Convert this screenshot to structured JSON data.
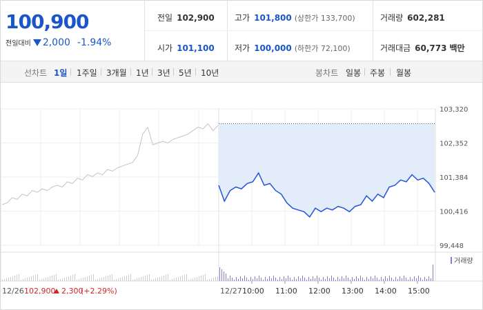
{
  "quote": {
    "price": "100,900",
    "change_label": "전일대비",
    "change_value": "2,000",
    "change_pct": "-1.94%"
  },
  "stats": {
    "prev_close": {
      "label": "전일",
      "value": "102,900"
    },
    "high": {
      "label": "고가",
      "value": "101,800",
      "limit_label": "(상한가 133,700)"
    },
    "volume": {
      "label": "거래량",
      "value": "602,281"
    },
    "open": {
      "label": "시가",
      "value": "101,100"
    },
    "low": {
      "label": "저가",
      "value": "100,000",
      "limit_label": "(하한가 72,100)"
    },
    "amount": {
      "label": "거래대금",
      "value": "60,773",
      "unit": "백만"
    }
  },
  "tabs": {
    "line_label": "선차트",
    "line_periods": [
      "1일",
      "1주일",
      "3개월",
      "1년",
      "3년",
      "5년",
      "10년"
    ],
    "selected": "1일",
    "candle_label": "봉차트",
    "candle_periods": [
      "일봉",
      "주봉",
      "월봉"
    ]
  },
  "chart": {
    "y_ticks": [
      "103,320",
      "102,352",
      "101,384",
      "100,416",
      "99,448"
    ],
    "x_time_labels": [
      "10:00",
      "11:00",
      "12:00",
      "13:00",
      "14:00",
      "15:00"
    ],
    "prev_day_date": "12/26",
    "prev_day_close": "102,900",
    "prev_day_change": "2,300",
    "prev_day_change_pct": "(+2.29%)",
    "today_date": "12/27",
    "volume_legend": "거래량",
    "colors": {
      "today_line": "#2255d6",
      "today_fill": "#e3ecf9",
      "prev_line": "#c4c4c4",
      "volume": "#8a7bc8"
    }
  },
  "chart_data": {
    "type": "line",
    "ylim": [
      99448,
      103320
    ],
    "y_ticks": [
      103320,
      102352,
      101384,
      100416,
      99448
    ],
    "reference_line": 102900,
    "series": [
      {
        "x": [
          "09:00",
          "09:10",
          "09:20",
          "09:30",
          "09:40",
          "09:50",
          "10:00",
          "10:10",
          "10:20",
          "10:30",
          "10:40",
          "10:50",
          "11:00",
          "11:10",
          "11:20",
          "11:30",
          "11:40",
          "11:50",
          "12:00",
          "12:10",
          "12:20",
          "12:30",
          "12:40",
          "12:50",
          "13:00",
          "13:10",
          "13:20",
          "13:30",
          "13:40",
          "13:50",
          "14:00",
          "14:10",
          "14:20",
          "14:30",
          "14:40",
          "14:50",
          "15:00",
          "15:10",
          "15:20"
        ],
        "values": [
          101150,
          100700,
          101000,
          101100,
          101050,
          101200,
          101250,
          101500,
          101150,
          101200,
          101000,
          100900,
          100650,
          100500,
          100450,
          100400,
          100250,
          100500,
          100400,
          100500,
          100450,
          100550,
          100500,
          100400,
          100550,
          100600,
          100850,
          100700,
          100900,
          100800,
          101100,
          101150,
          101300,
          101250,
          101450,
          101300,
          101350,
          101200,
          100950
        ]
      }
    ]
  }
}
